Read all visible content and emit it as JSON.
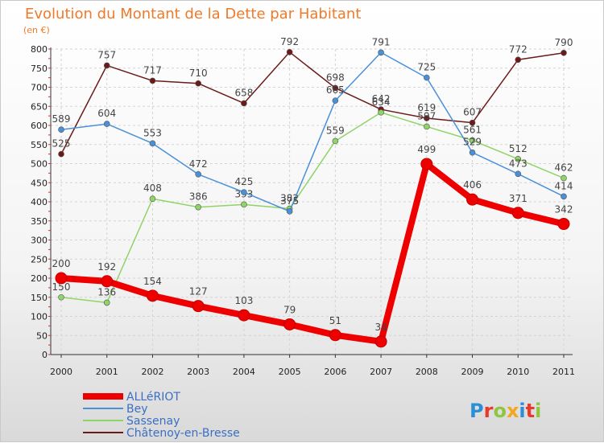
{
  "chart_data": {
    "type": "line",
    "title": "Evolution du Montant de la Dette par Habitant",
    "subtitle": "(en €)",
    "xlabel": "",
    "ylabel": "",
    "categories": [
      "2000",
      "2001",
      "2002",
      "2003",
      "2004",
      "2005",
      "2006",
      "2007",
      "2008",
      "2009",
      "2010",
      "2011"
    ],
    "ylim": [
      0,
      800
    ],
    "yticks": [
      0,
      50,
      100,
      150,
      200,
      250,
      300,
      350,
      400,
      450,
      500,
      550,
      600,
      650,
      700,
      750,
      800
    ],
    "grid": true,
    "legend_position": "bottom-left",
    "series": [
      {
        "name": "ALLéRIOT",
        "color": "#ee0000",
        "values": [
          200,
          192,
          154,
          127,
          103,
          79,
          51,
          34,
          499,
          406,
          371,
          342
        ]
      },
      {
        "name": "Bey",
        "color": "#4a90d9",
        "values": [
          589,
          604,
          553,
          472,
          425,
          375,
          665,
          791,
          725,
          529,
          473,
          414
        ]
      },
      {
        "name": "Sassenay",
        "color": "#8fd467",
        "values": [
          150,
          136,
          408,
          386,
          393,
          382,
          559,
          634,
          597,
          561,
          512,
          462
        ]
      },
      {
        "name": "Châtenoy-en-Bresse",
        "color": "#6b1a1a",
        "values": [
          525,
          757,
          717,
          710,
          658,
          792,
          698,
          642,
          619,
          607,
          772,
          790
        ]
      }
    ]
  },
  "logo": {
    "text": "Proxiti",
    "letters": [
      "P",
      "r",
      "o",
      "x",
      "i",
      "t",
      "i"
    ],
    "colors": [
      "#2c8fd6",
      "#e8392a",
      "#8ec63f",
      "#f2a81d",
      "#2c8fd6",
      "#e8392a",
      "#8ec63f"
    ]
  }
}
